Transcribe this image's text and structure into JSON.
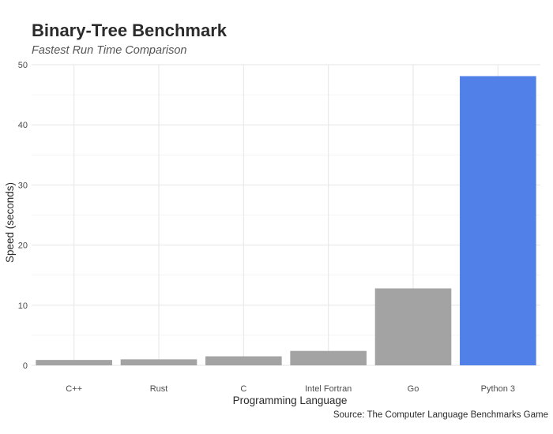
{
  "chart_data": {
    "type": "bar",
    "title": "Binary-Tree Benchmark",
    "subtitle": "Fastest Run Time Comparison",
    "xlabel": "Programming Language",
    "ylabel": "Speed (seconds)",
    "caption": "Source: The Computer Language Benchmarks Game",
    "categories": [
      "C++",
      "Rust",
      "C",
      "Intel Fortran",
      "Go",
      "Python 3"
    ],
    "values": [
      0.9,
      1.0,
      1.5,
      2.4,
      12.8,
      48.1
    ],
    "highlight_index": 5,
    "colors": {
      "default": "#a3a3a3",
      "highlight": "#5280e9",
      "grid_major": "#e6e6e6",
      "grid_minor": "#f2f2f2"
    },
    "ylim": [
      0,
      50
    ],
    "yticks": [
      0,
      10,
      20,
      30,
      40,
      50
    ],
    "grid": true,
    "legend": "none"
  }
}
